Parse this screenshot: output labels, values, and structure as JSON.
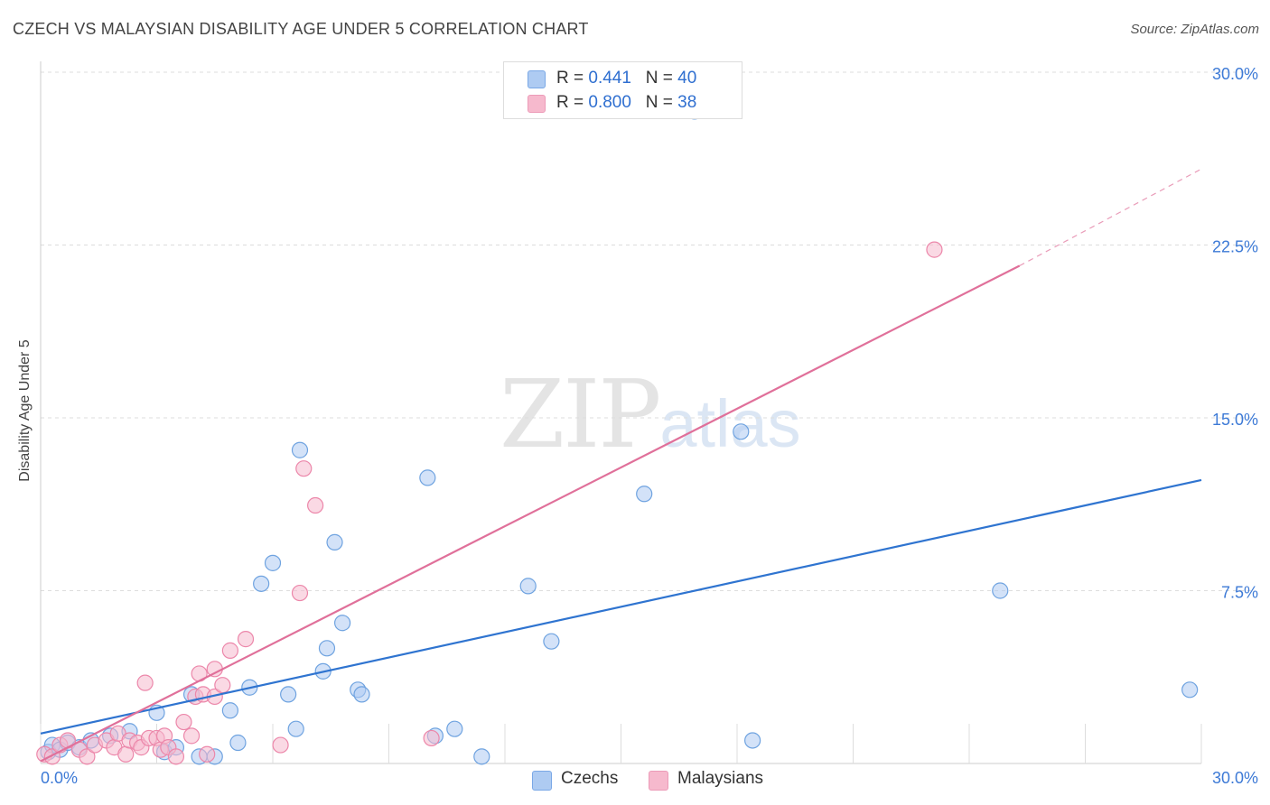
{
  "title": "CZECH VS MALAYSIAN DISABILITY AGE UNDER 5 CORRELATION CHART",
  "source": "Source: ZipAtlas.com",
  "watermark": {
    "zip": "ZIP",
    "atlas": "atlas"
  },
  "legend_top": {
    "rows": [
      {
        "r_label": "R = ",
        "r_value": "0.441",
        "n_label": "N = ",
        "n_value": "40",
        "color": "#aecbf2"
      },
      {
        "r_label": "R = ",
        "r_value": "0.800",
        "n_label": "N = ",
        "n_value": "38",
        "color": "#f6b9cd"
      }
    ]
  },
  "chart_data": {
    "type": "scatter",
    "title": "CZECH VS MALAYSIAN DISABILITY AGE UNDER 5 CORRELATION CHART",
    "xlabel": "",
    "ylabel": "Disability Age Under 5",
    "xlim": [
      0,
      30
    ],
    "ylim": [
      0,
      30
    ],
    "x_tick_labels": [
      "0.0%",
      "30.0%"
    ],
    "y_ticks": [
      7.5,
      15.0,
      22.5,
      30.0
    ],
    "y_tick_labels": [
      "7.5%",
      "15.0%",
      "22.5%",
      "30.0%"
    ],
    "grid": true,
    "series": [
      {
        "name": "Czechs",
        "color": "#6fa3e0",
        "fill": "#aecbf2",
        "line_color": "#2f74d0",
        "trend": {
          "x": [
            0,
            30
          ],
          "y": [
            1.3,
            12.3
          ]
        },
        "points": [
          [
            0.2,
            0.5
          ],
          [
            0.3,
            0.8
          ],
          [
            0.5,
            0.6
          ],
          [
            0.7,
            0.9
          ],
          [
            1.0,
            0.7
          ],
          [
            1.3,
            1.0
          ],
          [
            1.8,
            1.2
          ],
          [
            2.3,
            1.4
          ],
          [
            3.0,
            2.2
          ],
          [
            3.2,
            0.5
          ],
          [
            3.5,
            0.7
          ],
          [
            3.9,
            3.0
          ],
          [
            4.1,
            0.3
          ],
          [
            4.5,
            0.3
          ],
          [
            4.9,
            2.3
          ],
          [
            5.1,
            0.9
          ],
          [
            5.4,
            3.3
          ],
          [
            5.7,
            7.8
          ],
          [
            6.0,
            8.7
          ],
          [
            6.4,
            3.0
          ],
          [
            6.6,
            1.5
          ],
          [
            6.7,
            13.6
          ],
          [
            7.3,
            4.0
          ],
          [
            7.4,
            5.0
          ],
          [
            7.6,
            9.6
          ],
          [
            7.8,
            6.1
          ],
          [
            8.2,
            3.2
          ],
          [
            8.3,
            3.0
          ],
          [
            10.0,
            12.4
          ],
          [
            10.2,
            1.2
          ],
          [
            10.7,
            1.5
          ],
          [
            11.4,
            0.3
          ],
          [
            12.6,
            7.7
          ],
          [
            13.2,
            5.3
          ],
          [
            15.6,
            11.7
          ],
          [
            18.1,
            14.4
          ],
          [
            18.4,
            1.0
          ],
          [
            24.8,
            7.5
          ],
          [
            29.7,
            3.2
          ],
          [
            16.9,
            28.3
          ]
        ]
      },
      {
        "name": "Malaysians",
        "color": "#ec87aa",
        "fill": "#f6b9cd",
        "line_color": "#e0709a",
        "trend": {
          "x": [
            0,
            25.3
          ],
          "y": [
            0.1,
            21.6
          ]
        },
        "trend_dashed": {
          "x": [
            25.3,
            30
          ],
          "y": [
            21.6,
            25.8
          ]
        },
        "points": [
          [
            0.1,
            0.4
          ],
          [
            0.3,
            0.3
          ],
          [
            0.5,
            0.8
          ],
          [
            0.7,
            1.0
          ],
          [
            1.0,
            0.6
          ],
          [
            1.2,
            0.3
          ],
          [
            1.4,
            0.8
          ],
          [
            1.7,
            1.0
          ],
          [
            1.9,
            0.7
          ],
          [
            2.0,
            1.3
          ],
          [
            2.2,
            0.4
          ],
          [
            2.3,
            1.0
          ],
          [
            2.5,
            0.9
          ],
          [
            2.6,
            0.7
          ],
          [
            2.7,
            3.5
          ],
          [
            2.8,
            1.1
          ],
          [
            3.0,
            1.1
          ],
          [
            3.1,
            0.6
          ],
          [
            3.2,
            1.2
          ],
          [
            3.3,
            0.7
          ],
          [
            3.5,
            0.3
          ],
          [
            3.7,
            1.8
          ],
          [
            4.0,
            2.9
          ],
          [
            4.1,
            3.9
          ],
          [
            4.2,
            3.0
          ],
          [
            4.3,
            0.4
          ],
          [
            4.5,
            2.9
          ],
          [
            4.9,
            4.9
          ],
          [
            4.5,
            4.1
          ],
          [
            3.9,
            1.2
          ],
          [
            4.7,
            3.4
          ],
          [
            5.3,
            5.4
          ],
          [
            6.2,
            0.8
          ],
          [
            6.7,
            7.4
          ],
          [
            6.8,
            12.8
          ],
          [
            7.1,
            11.2
          ],
          [
            10.1,
            1.1
          ],
          [
            23.1,
            22.3
          ]
        ]
      }
    ]
  },
  "bottom_legend": [
    {
      "label": "Czechs",
      "color": "#aecbf2"
    },
    {
      "label": "Malaysians",
      "color": "#f6b9cd"
    }
  ]
}
